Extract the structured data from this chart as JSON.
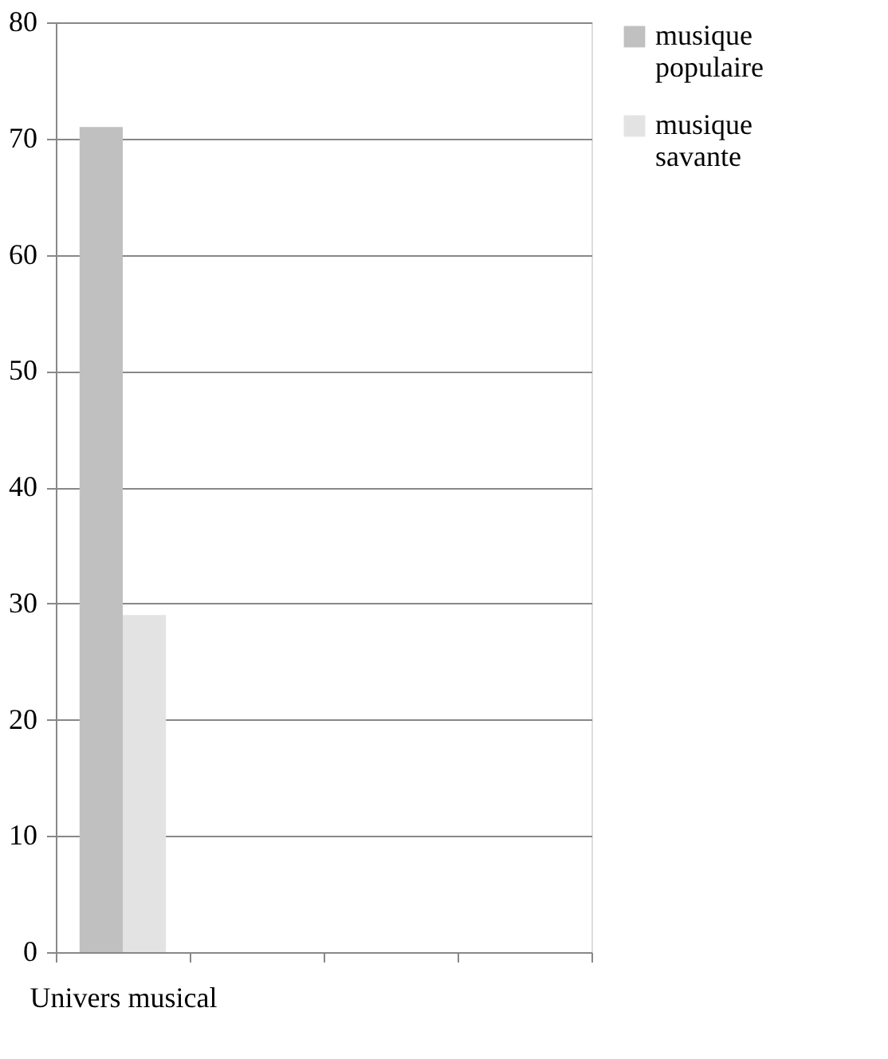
{
  "chart_data": {
    "type": "bar",
    "categories": [
      "Univers musical",
      null,
      null,
      null
    ],
    "series": [
      {
        "name": "musique populaire",
        "color": "#c0c0c0",
        "values": [
          71,
          null,
          null,
          null
        ]
      },
      {
        "name": "musique savante",
        "color": "#e3e3e3",
        "values": [
          29,
          null,
          null,
          null
        ]
      }
    ],
    "ylim": [
      0,
      80
    ],
    "yticks": [
      0,
      10,
      20,
      30,
      40,
      50,
      60,
      70,
      80
    ],
    "grid": "y",
    "legend": "right"
  }
}
